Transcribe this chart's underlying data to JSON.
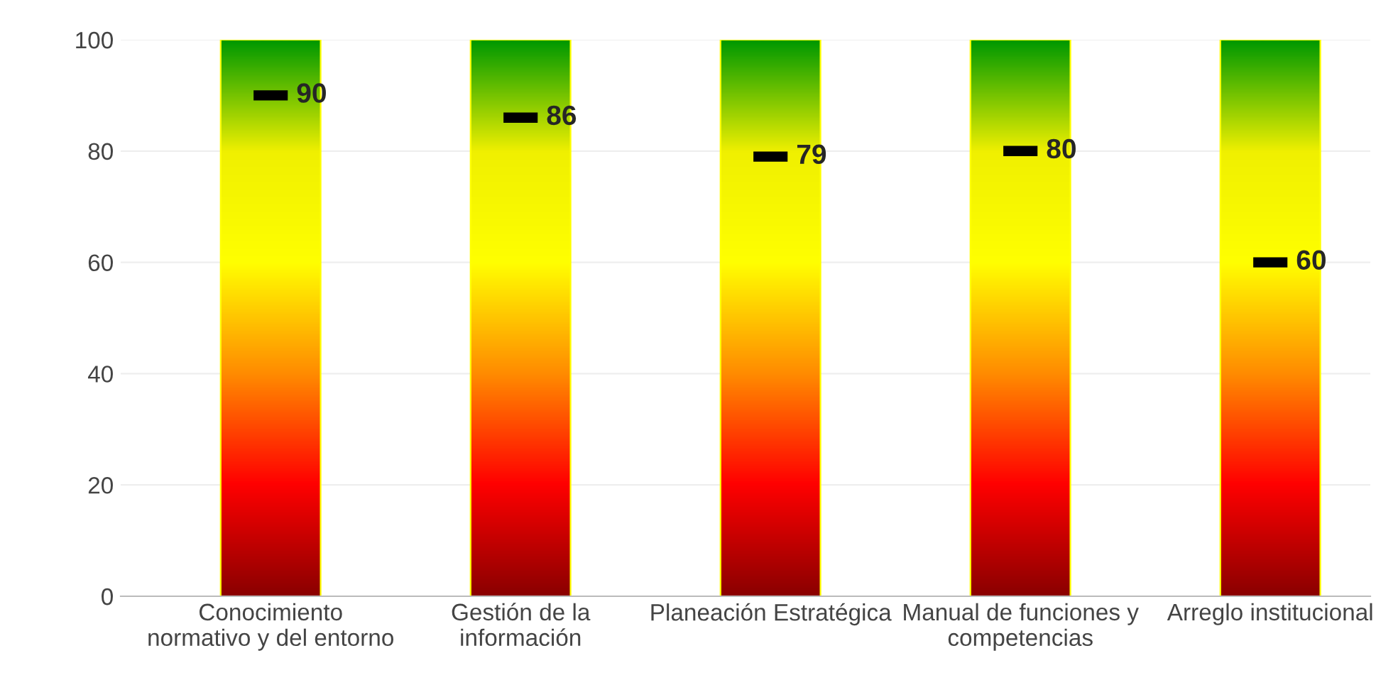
{
  "chart_data": {
    "type": "bar",
    "categories": [
      "Conocimiento\nnormativo y del entorno",
      "Gestión de la\ninformación",
      "Planeación Estratégica",
      "Manual de funciones y\ncompetencias",
      "Arreglo institucional"
    ],
    "series": [
      {
        "color": "#ffff00",
        "values": [
          100,
          100,
          100,
          100,
          100
        ]
      },
      {
        "type": "scatter",
        "color": "#000000",
        "values": [
          90,
          86,
          79,
          80,
          60
        ],
        "data_labels": true
      }
    ],
    "ylim": [
      0,
      100
    ],
    "yticks": [
      0,
      20,
      40,
      60,
      80,
      100
    ],
    "grid": "y",
    "legend": false
  }
}
